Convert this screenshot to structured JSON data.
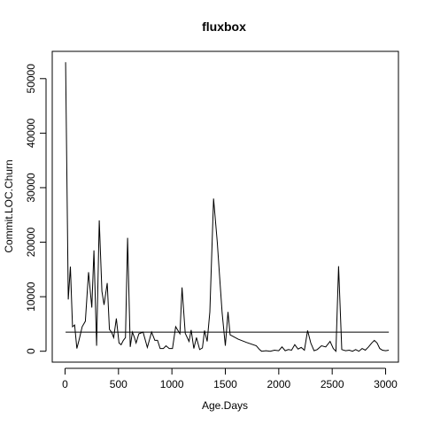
{
  "chart_data": {
    "type": "line",
    "title": "fluxbox",
    "xlabel": "Age.Days",
    "ylabel": "Commit.LOC.Churn",
    "xlim": [
      -120,
      3120
    ],
    "ylim": [
      -2000,
      55000
    ],
    "xticks": [
      0,
      500,
      1000,
      1500,
      2000,
      2500,
      3000
    ],
    "yticks": [
      0,
      10000,
      20000,
      30000,
      40000,
      50000
    ],
    "grid": false,
    "legend": "none",
    "series": [
      {
        "style": "line",
        "x": [
          5,
          30,
          50,
          70,
          90,
          110,
          130,
          160,
          190,
          220,
          250,
          270,
          295,
          320,
          345,
          365,
          395,
          415,
          435,
          455,
          480,
          505,
          525,
          545,
          565,
          585,
          610,
          630,
          650,
          665,
          690,
          730,
          770,
          810,
          840,
          865,
          890,
          920,
          945,
          975,
          1005,
          1035,
          1075,
          1095,
          1125,
          1160,
          1180,
          1205,
          1230,
          1260,
          1285,
          1305,
          1330,
          1355,
          1390,
          1425,
          1445,
          1470,
          1500,
          1525,
          1545,
          1565,
          1620,
          1700,
          1790,
          1820,
          1840,
          1880,
          1920,
          1960,
          2000,
          2030,
          2060,
          2090,
          2120,
          2150,
          2180,
          2210,
          2240,
          2270,
          2300,
          2330,
          2360,
          2400,
          2440,
          2480,
          2510,
          2535,
          2560,
          2590,
          2625,
          2660,
          2690,
          2720,
          2750,
          2780,
          2810,
          2840,
          2870,
          2895,
          2920,
          2945,
          2970,
          3000,
          3030
        ],
        "y": [
          53000,
          9500,
          15500,
          4500,
          4800,
          500,
          2000,
          4500,
          5500,
          14500,
          8000,
          18500,
          1000,
          24000,
          11000,
          8500,
          12500,
          4000,
          3500,
          2500,
          6000,
          1500,
          1200,
          2000,
          2500,
          20800,
          800,
          3500,
          2500,
          1500,
          3200,
          3500,
          700,
          3500,
          2000,
          2000,
          500,
          500,
          1000,
          500,
          500,
          4500,
          3200,
          11700,
          3300,
          1800,
          3900,
          500,
          2500,
          300,
          600,
          3800,
          1800,
          7200,
          28000,
          20000,
          14000,
          7000,
          1000,
          7200,
          3000,
          2800,
          2200,
          1600,
          1000,
          300,
          0,
          100,
          0,
          200,
          100,
          800,
          100,
          300,
          200,
          1200,
          400,
          700,
          200,
          3800,
          1500,
          100,
          300,
          1000,
          800,
          1800,
          500,
          0,
          15600,
          300,
          100,
          200,
          0,
          300,
          0,
          500,
          200,
          800,
          1500,
          2000,
          1500,
          500,
          200,
          100,
          200
        ]
      },
      {
        "style": "mean-line",
        "x": [
          5,
          3030
        ],
        "y": [
          3500,
          3500
        ]
      }
    ]
  }
}
